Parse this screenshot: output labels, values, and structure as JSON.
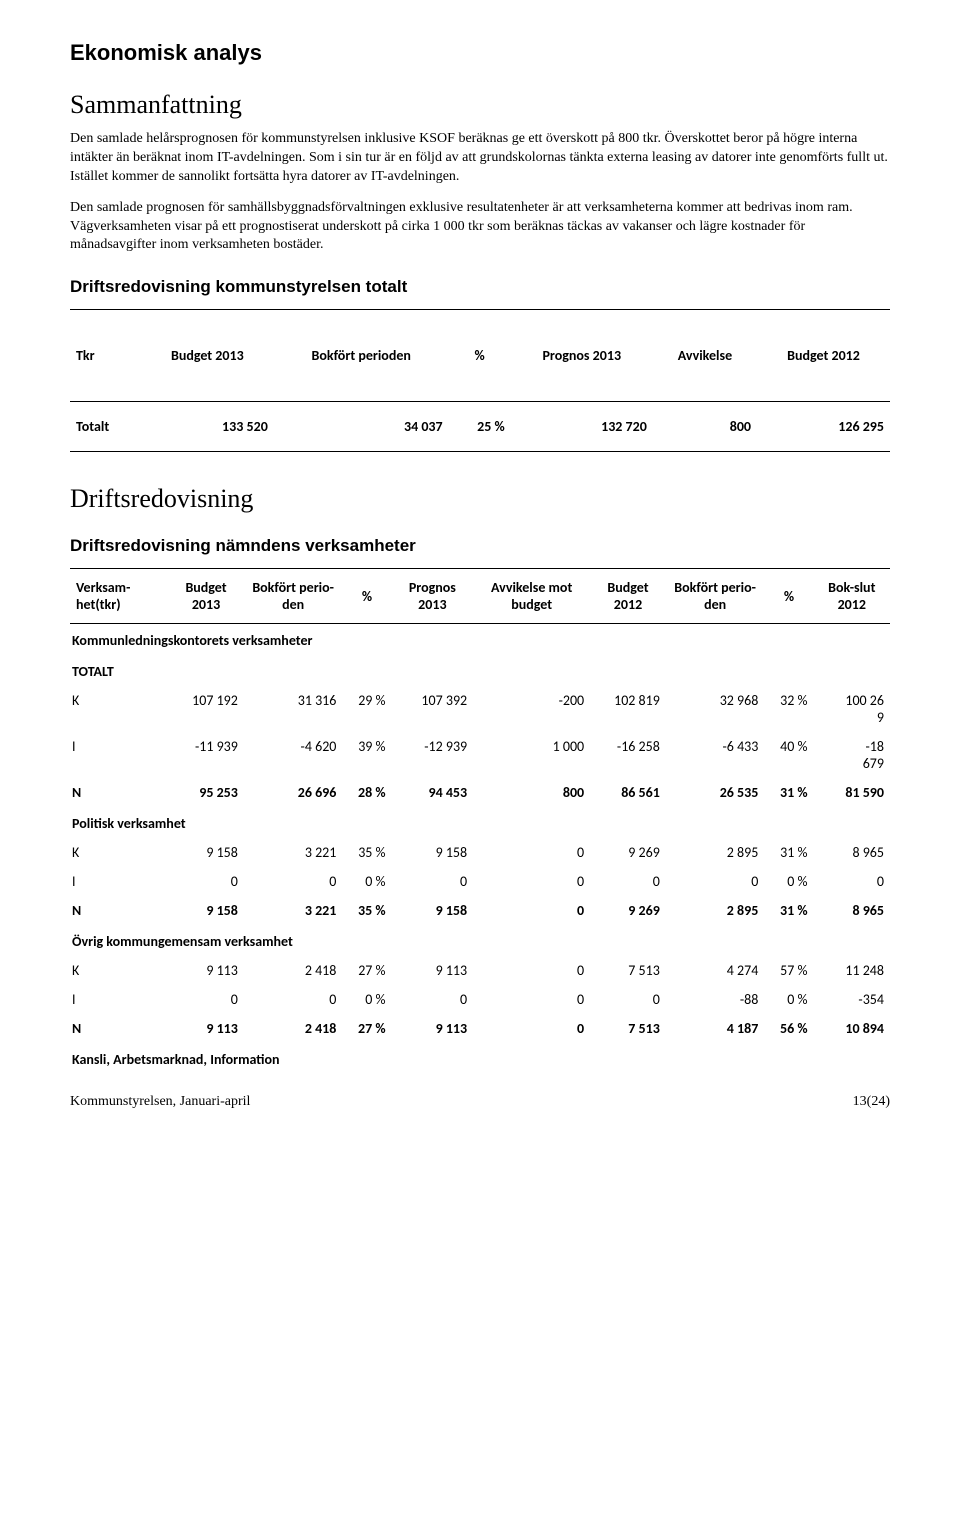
{
  "headings": {
    "h1": "Ekonomisk analys",
    "h2a": "Sammanfattning",
    "h3a": "Driftsredovisning kommunstyrelsen totalt",
    "h2b": "Driftsredovisning",
    "h3b": "Driftsredovisning nämndens verksamheter"
  },
  "paragraphs": {
    "p1": "Den samlade helårsprognosen för kommunstyrelsen inklusive KSOF beräknas ge ett överskott på 800 tkr. Överskottet beror på högre interna intäkter än beräknat inom IT-avdelningen. Som i sin tur är en följd av att grundskolornas tänkta externa leasing av datorer inte genomförts fullt ut. Istället kommer de sannolikt fortsätta hyra datorer av IT-avdelningen.",
    "p2": "Den samlade prognosen för samhällsbyggnadsförvaltningen exklusive resultatenheter är att verksamheterna kommer att bedrivas inom ram. Vägverksamheten visar på ett prognostiserat underskott på cirka 1 000 tkr som beräknas täckas av vakanser och lägre kostnader för månadsavgifter inom verksamheten bostäder."
  },
  "table1": {
    "headers": [
      "Tkr",
      "Budget 2013",
      "Bokfört perioden",
      "%",
      "Prognos 2013",
      "Avvikelse",
      "Budget 2012"
    ],
    "row": [
      "Totalt",
      "133 520",
      "34 037",
      "25 %",
      "132 720",
      "800",
      "126 295"
    ]
  },
  "table2": {
    "headers": [
      "Verksam-het(tkr)",
      "Budget 2013",
      "Bokfört perio-den",
      "%",
      "Prognos 2013",
      "Avvikelse mot budget",
      "Budget 2012",
      "Bokfört perio-den",
      "%",
      "Bok-slut 2012"
    ],
    "sections": [
      {
        "title": "Kommunledningskontorets verksamheter"
      },
      {
        "title": "TOTALT"
      },
      {
        "label": "K",
        "cells": [
          "107 192",
          "31 316",
          "29 %",
          "107 392",
          "-200",
          "102 819",
          "32 968",
          "32 %",
          "100 26\n9"
        ]
      },
      {
        "label": "I",
        "cells": [
          "-11 939",
          "-4 620",
          "39 %",
          "-12 939",
          "1 000",
          "-16 258",
          "-6 433",
          "40 %",
          "-18\n679"
        ]
      },
      {
        "label": "N",
        "bold": true,
        "cells": [
          "95 253",
          "26 696",
          "28 %",
          "94 453",
          "800",
          "86 561",
          "26 535",
          "31 %",
          "81 590"
        ]
      },
      {
        "title": "Politisk verksamhet"
      },
      {
        "label": "K",
        "cells": [
          "9 158",
          "3 221",
          "35 %",
          "9 158",
          "0",
          "9 269",
          "2 895",
          "31 %",
          "8 965"
        ]
      },
      {
        "label": "I",
        "cells": [
          "0",
          "0",
          "0 %",
          "0",
          "0",
          "0",
          "0",
          "0 %",
          "0"
        ]
      },
      {
        "label": "N",
        "bold": true,
        "cells": [
          "9 158",
          "3 221",
          "35 %",
          "9 158",
          "0",
          "9 269",
          "2 895",
          "31 %",
          "8 965"
        ]
      },
      {
        "title": "Övrig kommungemensam verksamhet"
      },
      {
        "label": "K",
        "cells": [
          "9 113",
          "2 418",
          "27 %",
          "9 113",
          "0",
          "7 513",
          "4 274",
          "57 %",
          "11 248"
        ]
      },
      {
        "label": "I",
        "cells": [
          "0",
          "0",
          "0 %",
          "0",
          "0",
          "0",
          "-88",
          "0 %",
          "-354"
        ]
      },
      {
        "label": "N",
        "bold": true,
        "cells": [
          "9 113",
          "2 418",
          "27 %",
          "9 113",
          "0",
          "7 513",
          "4 187",
          "56 %",
          "10 894"
        ]
      },
      {
        "title": "Kansli, Arbetsmarknad, Information"
      }
    ]
  },
  "footer": {
    "left": "Kommunstyrelsen, Januari-april",
    "right": "13(24)"
  },
  "style": {
    "background": "#ffffff",
    "text_color": "#000000",
    "heading_font": "Verdana",
    "body_font": "Georgia",
    "table_font": "Calibri",
    "border_color": "#000000"
  }
}
